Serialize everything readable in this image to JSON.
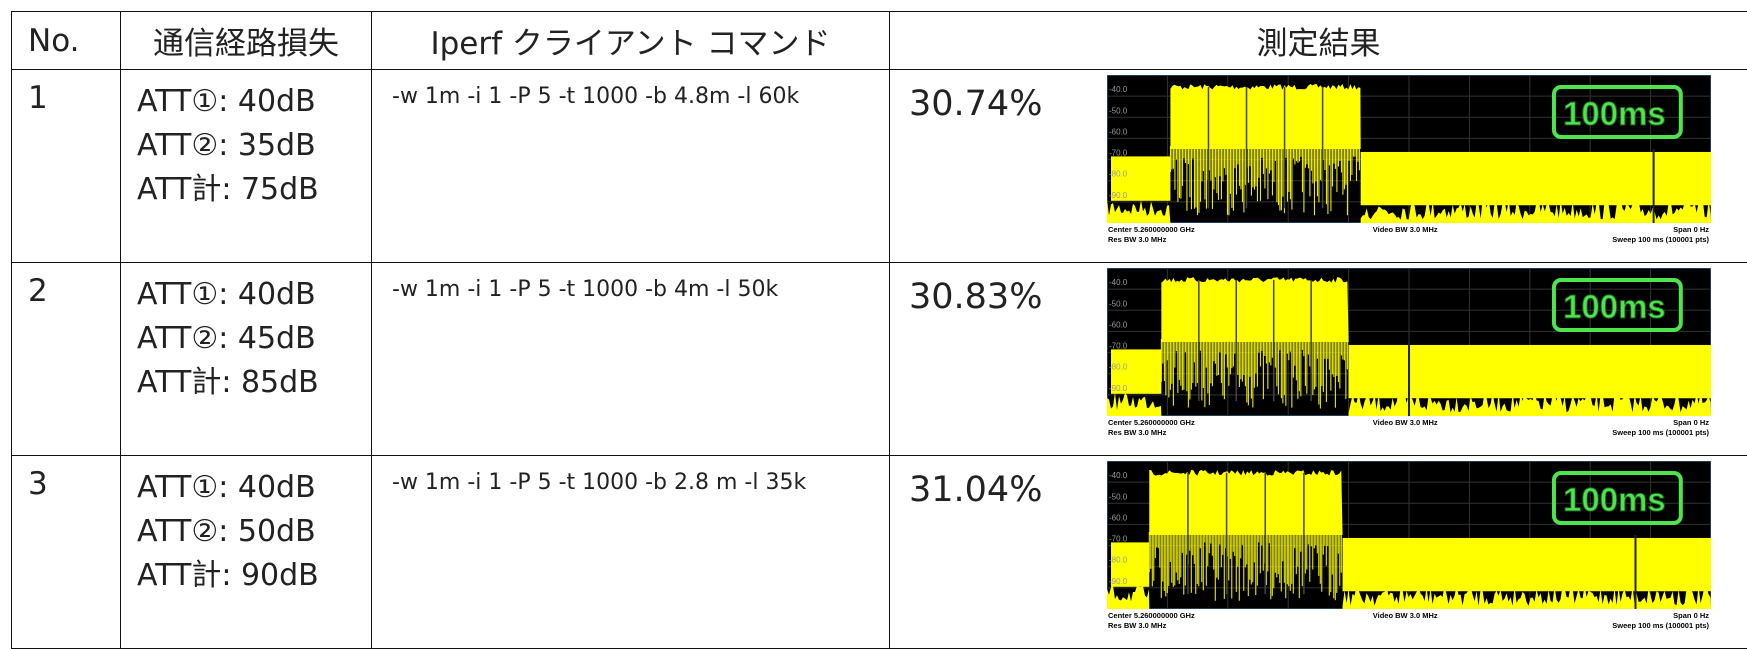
{
  "table": {
    "header": [
      "No.",
      "通信経路損失",
      "Iperf クライアント コマンド",
      "測定結果"
    ],
    "rows": [
      {
        "no": "1",
        "loss": [
          "ATT①: 40dB",
          "ATT②: 35dB",
          "ATT計: 75dB"
        ],
        "command": "-w 1m -i 1 -P 5 -t 1000 -b 4.8m -l 60k",
        "result": "30.74%",
        "plot": {
          "y_labels": [
            "-40.0",
            "-50.0",
            "-60.0",
            "-70.0",
            "-80.0",
            "-90.0"
          ],
          "center": "Center 5.260000000 GHz",
          "res_bw": "Res BW 3.0 MHz",
          "video_bw": "Video BW 3.0 MHz",
          "span": "Span 0 Hz",
          "sweep": "Sweep 100 ms (100001 pts)",
          "marker": "100ms"
        }
      },
      {
        "no": "2",
        "loss": [
          "ATT①: 40dB",
          "ATT②: 45dB",
          "ATT計: 85dB"
        ],
        "command": "-w 1m -i 1 -P 5 -t 1000 -b 4m -l 50k",
        "result": "30.83%",
        "plot": {
          "y_labels": [
            "-40.0",
            "-50.0",
            "-60.0",
            "-70.0",
            "-80.0",
            "-90.0"
          ],
          "center": "Center 5.260000000 GHz",
          "res_bw": "Res BW 3.0 MHz",
          "video_bw": "Video BW 3.0 MHz",
          "span": "Span 0 Hz",
          "sweep": "Sweep 100 ms (100001 pts)",
          "marker": "100ms"
        }
      },
      {
        "no": "3",
        "loss": [
          "ATT①: 40dB",
          "ATT②: 50dB",
          "ATT計: 90dB"
        ],
        "command": "-w 1m -i 1 -P 5 -t 1000 -b 2.8 m -l 35k",
        "result": "31.04%",
        "plot": {
          "y_labels": [
            "-40.0",
            "-50.0",
            "-60.0",
            "-70.0",
            "-80.0",
            "-90.0"
          ],
          "center": "Center 5.260000000 GHz",
          "res_bw": "Res BW 3.0 MHz",
          "video_bw": "Video BW 3.0 MHz",
          "span": "Span 0 Hz",
          "sweep": "Sweep 100 ms (100001 pts)",
          "marker": "100ms"
        }
      }
    ]
  }
}
